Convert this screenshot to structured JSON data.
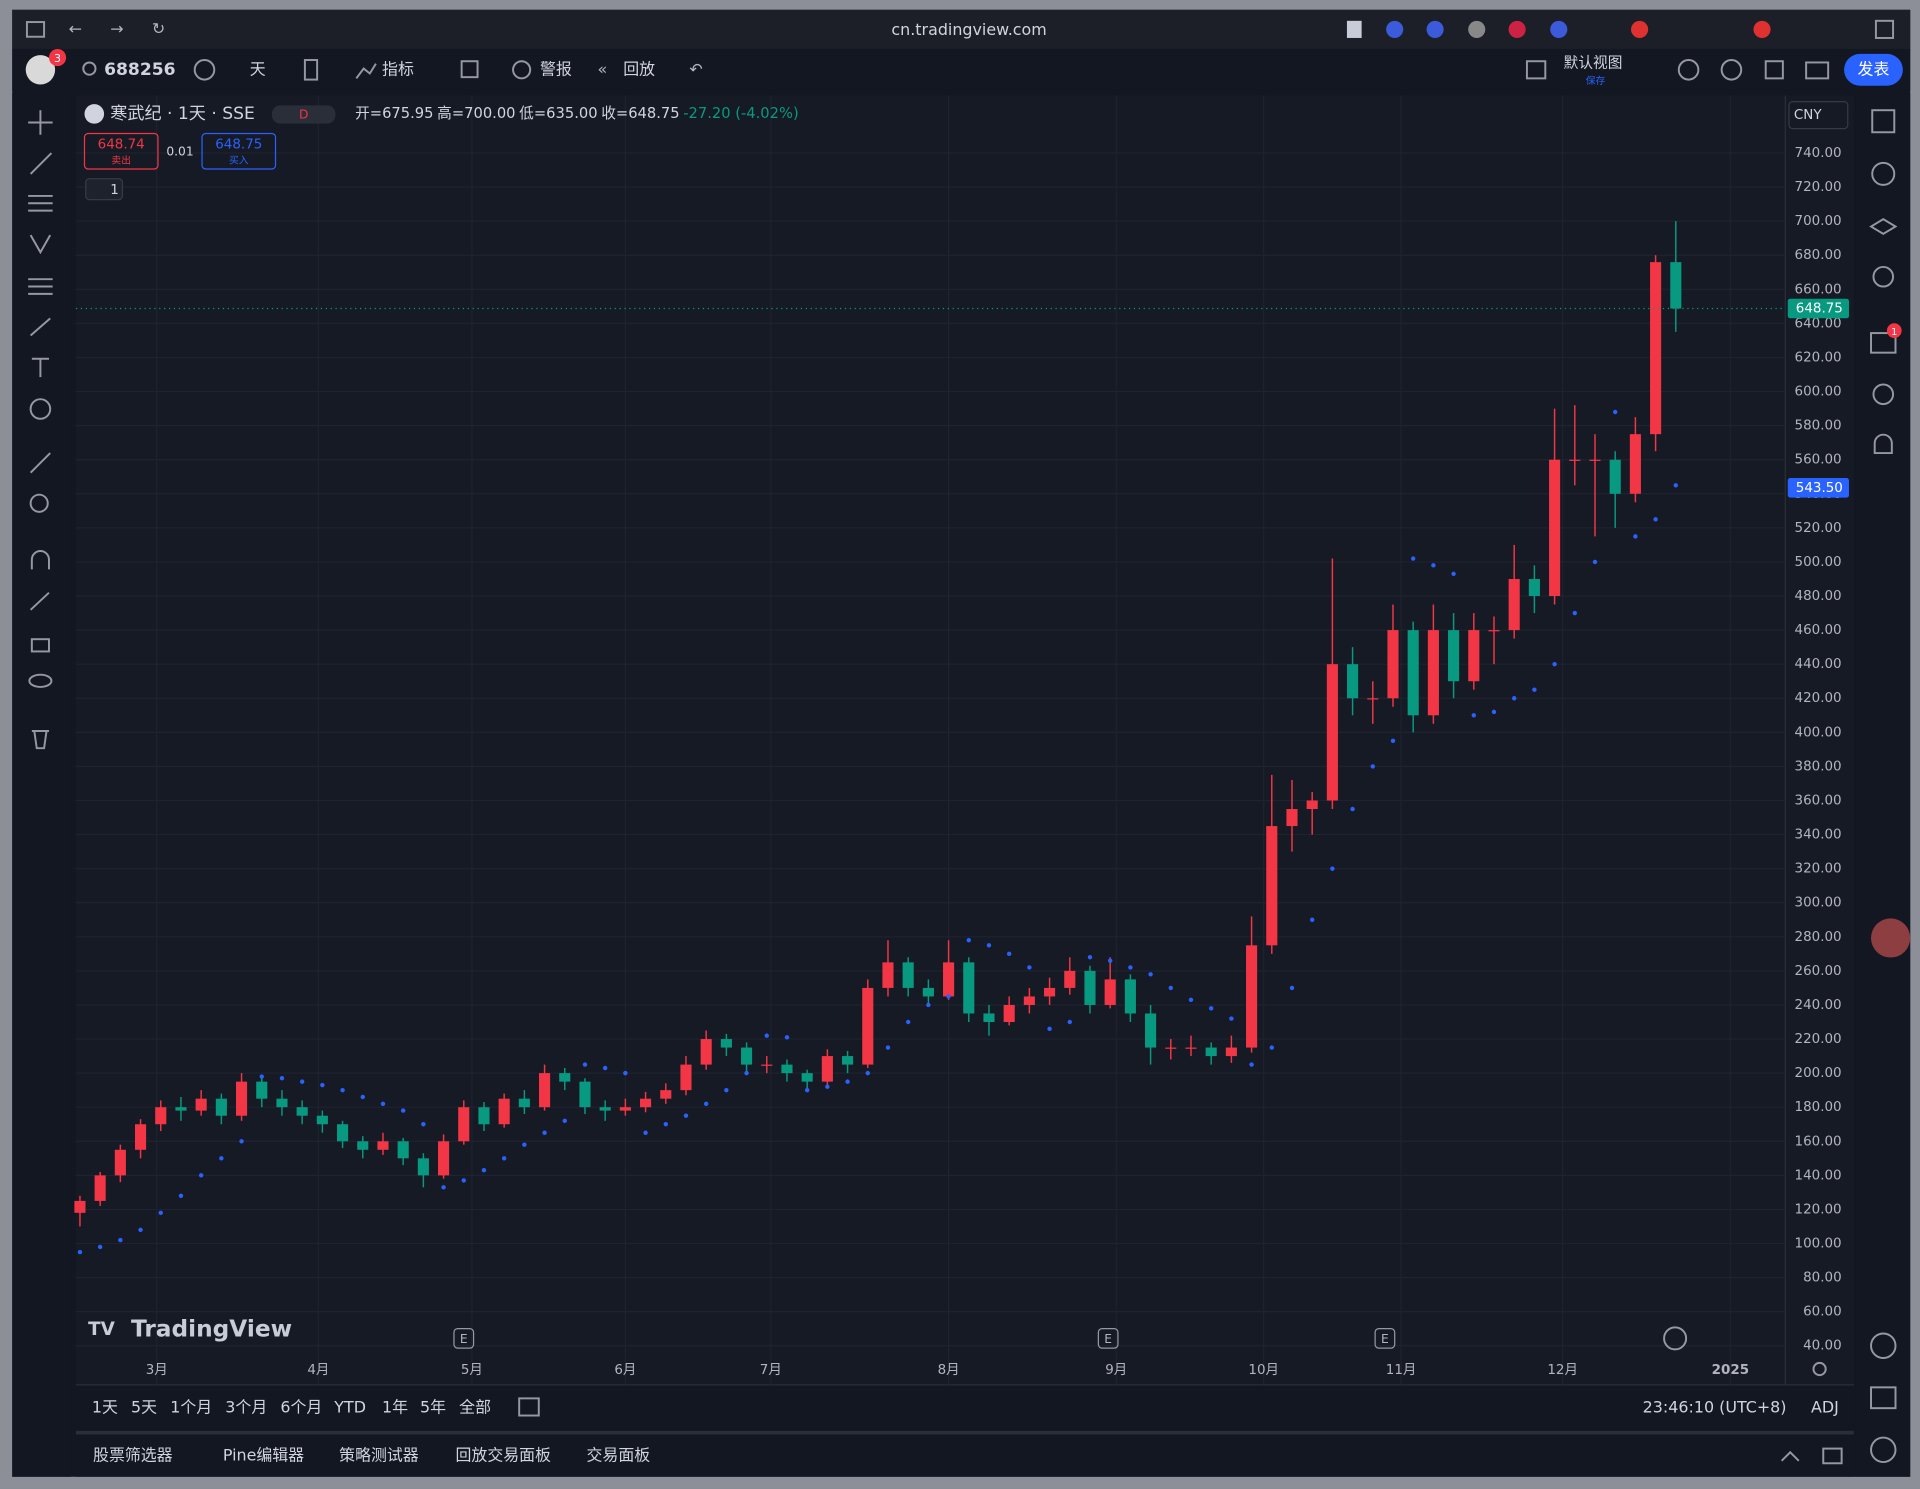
{
  "browser": {
    "url": "cn.tradingview.com"
  },
  "toolbar": {
    "badge": "3",
    "symbol": "688256",
    "interval": "天",
    "indicators": "指标",
    "alerts": "警报",
    "replay": "回放",
    "layout": "默认视图",
    "layout_sub": "保存",
    "publish": "发表"
  },
  "legend": {
    "title": "寒武纪 · 1天 · SSE",
    "session": "D",
    "open": "开=675.95",
    "high": "高=700.00",
    "low": "低=635.00",
    "close": "收=648.75",
    "change": "-27.20 (-4.02%)",
    "sell_price": "648.74",
    "sell": "卖出",
    "spread": "0.01",
    "buy_price": "648.75",
    "buy": "买入",
    "indicators": "1"
  },
  "chart_data": {
    "type": "candlestick",
    "candles": [
      [
        118,
        128,
        110,
        125
      ],
      [
        125,
        142,
        122,
        140
      ],
      [
        140,
        158,
        136,
        155
      ],
      [
        155,
        173,
        150,
        170
      ],
      [
        170,
        184,
        166,
        180
      ],
      [
        180,
        186,
        172,
        178
      ],
      [
        178,
        190,
        175,
        185
      ],
      [
        185,
        188,
        170,
        175
      ],
      [
        175,
        200,
        172,
        195
      ],
      [
        195,
        197,
        180,
        185
      ],
      [
        185,
        190,
        175,
        180
      ],
      [
        180,
        184,
        170,
        175
      ],
      [
        175,
        178,
        165,
        170
      ],
      [
        170,
        172,
        156,
        160
      ],
      [
        160,
        163,
        150,
        155
      ],
      [
        155,
        165,
        152,
        160
      ],
      [
        160,
        162,
        146,
        150
      ],
      [
        150,
        153,
        133,
        140
      ],
      [
        140,
        164,
        138,
        160
      ],
      [
        160,
        184,
        158,
        180
      ],
      [
        180,
        183,
        166,
        170
      ],
      [
        170,
        188,
        168,
        185
      ],
      [
        185,
        190,
        176,
        180
      ],
      [
        180,
        205,
        178,
        200
      ],
      [
        200,
        203,
        190,
        195
      ],
      [
        195,
        197,
        176,
        180
      ],
      [
        180,
        184,
        172,
        178
      ],
      [
        178,
        185,
        175,
        180
      ],
      [
        180,
        189,
        177,
        185
      ],
      [
        185,
        194,
        182,
        190
      ],
      [
        190,
        210,
        187,
        205
      ],
      [
        205,
        225,
        202,
        220
      ],
      [
        220,
        223,
        210,
        215
      ],
      [
        215,
        218,
        200,
        205
      ],
      [
        205,
        210,
        200,
        205
      ],
      [
        205,
        208,
        195,
        200
      ],
      [
        200,
        202,
        190,
        195
      ],
      [
        195,
        214,
        192,
        210
      ],
      [
        210,
        213,
        200,
        205
      ],
      [
        205,
        255,
        203,
        250
      ],
      [
        250,
        278,
        245,
        265
      ],
      [
        265,
        268,
        245,
        250
      ],
      [
        250,
        255,
        240,
        245
      ],
      [
        245,
        278,
        243,
        265
      ],
      [
        265,
        268,
        230,
        235
      ],
      [
        235,
        240,
        222,
        230
      ],
      [
        230,
        245,
        228,
        240
      ],
      [
        240,
        250,
        235,
        245
      ],
      [
        245,
        256,
        240,
        250
      ],
      [
        250,
        268,
        246,
        260
      ],
      [
        260,
        263,
        235,
        240
      ],
      [
        240,
        268,
        238,
        255
      ],
      [
        255,
        258,
        230,
        235
      ],
      [
        235,
        240,
        205,
        215
      ],
      [
        215,
        220,
        208,
        215
      ],
      [
        215,
        222,
        210,
        215
      ],
      [
        215,
        218,
        205,
        210
      ],
      [
        210,
        222,
        206,
        215
      ],
      [
        215,
        292,
        212,
        275
      ],
      [
        275,
        375,
        270,
        345
      ],
      [
        345,
        372,
        330,
        355
      ],
      [
        355,
        365,
        340,
        360
      ],
      [
        360,
        502,
        355,
        440
      ],
      [
        440,
        450,
        410,
        420
      ],
      [
        420,
        430,
        405,
        420
      ],
      [
        420,
        475,
        415,
        460
      ],
      [
        460,
        465,
        400,
        410
      ],
      [
        410,
        475,
        405,
        460
      ],
      [
        460,
        470,
        420,
        430
      ],
      [
        430,
        470,
        425,
        460
      ],
      [
        460,
        468,
        440,
        460
      ],
      [
        460,
        510,
        455,
        490
      ],
      [
        490,
        498,
        470,
        480
      ],
      [
        480,
        590,
        475,
        560
      ],
      [
        560,
        592,
        545,
        560
      ],
      [
        560,
        575,
        515,
        560
      ],
      [
        560,
        565,
        520,
        540
      ],
      [
        540,
        585,
        535,
        575
      ],
      [
        575,
        680,
        565,
        675.95
      ],
      [
        675.95,
        700,
        635,
        648.75
      ]
    ],
    "sar": [
      95,
      98,
      102,
      108,
      118,
      128,
      140,
      150,
      160,
      198,
      197,
      195,
      193,
      190,
      186,
      182,
      178,
      170,
      133,
      137,
      143,
      150,
      158,
      165,
      172,
      205,
      203,
      200,
      165,
      170,
      175,
      182,
      190,
      200,
      222,
      221,
      190,
      192,
      195,
      200,
      215,
      230,
      240,
      245,
      278,
      275,
      270,
      262,
      226,
      230,
      268,
      266,
      262,
      258,
      250,
      243,
      238,
      232,
      205,
      215,
      250,
      290,
      320,
      355,
      380,
      395,
      502,
      498,
      493,
      410,
      412,
      420,
      425,
      440,
      470,
      500,
      588,
      515,
      525,
      545
    ],
    "up_color": "#f23645",
    "down_color": "#089981",
    "sar_color": "#2962ff",
    "xlim": [
      -0.2,
      84.3
    ],
    "xticks": [
      {
        "value": 3.8,
        "label": "3月"
      },
      {
        "value": 11.8,
        "label": "4月"
      },
      {
        "value": 19.4,
        "label": "5月"
      },
      {
        "value": 27,
        "label": "6月"
      },
      {
        "value": 34.2,
        "label": "7月"
      },
      {
        "value": 43,
        "label": "8月"
      },
      {
        "value": 51.3,
        "label": "9月"
      },
      {
        "value": 58.6,
        "label": "10月"
      },
      {
        "value": 65.4,
        "label": "11月"
      },
      {
        "value": 73.4,
        "label": "12月"
      },
      {
        "value": 81.7,
        "label": "2025"
      }
    ],
    "ylim": [
      35.7,
      772.3
    ],
    "yticks": [
      {
        "value": 40,
        "label": "40.00"
      },
      {
        "value": 60,
        "label": "60.00"
      },
      {
        "value": 80,
        "label": "80.00"
      },
      {
        "value": 100,
        "label": "100.00"
      },
      {
        "value": 120,
        "label": "120.00"
      },
      {
        "value": 140,
        "label": "140.00"
      },
      {
        "value": 160,
        "label": "160.00"
      },
      {
        "value": 180,
        "label": "180.00"
      },
      {
        "value": 200,
        "label": "200.00"
      },
      {
        "value": 220,
        "label": "220.00"
      },
      {
        "value": 240,
        "label": "240.00"
      },
      {
        "value": 260,
        "label": "260.00"
      },
      {
        "value": 280,
        "label": "280.00"
      },
      {
        "value": 300,
        "label": "300.00"
      },
      {
        "value": 320,
        "label": "320.00"
      },
      {
        "value": 340,
        "label": "340.00"
      },
      {
        "value": 360,
        "label": "360.00"
      },
      {
        "value": 380,
        "label": "380.00"
      },
      {
        "value": 400,
        "label": "400.00"
      },
      {
        "value": 420,
        "label": "420.00"
      },
      {
        "value": 440,
        "label": "440.00"
      },
      {
        "value": 460,
        "label": "460.00"
      },
      {
        "value": 480,
        "label": "480.00"
      },
      {
        "value": 500,
        "label": "500.00"
      },
      {
        "value": 520,
        "label": "520.00"
      },
      {
        "value": 540,
        "label": "540.00"
      },
      {
        "value": 560,
        "label": "560.00"
      },
      {
        "value": 580,
        "label": "580.00"
      },
      {
        "value": 600,
        "label": "600.00"
      },
      {
        "value": 620,
        "label": "620.00"
      },
      {
        "value": 640,
        "label": "640.00"
      },
      {
        "value": 660,
        "label": "660.00"
      },
      {
        "value": 680,
        "label": "680.00"
      },
      {
        "value": 700,
        "label": "700.00"
      },
      {
        "value": 720,
        "label": "720.00"
      },
      {
        "value": 740,
        "label": "740.00"
      }
    ],
    "grid": true,
    "last_price": {
      "value": 648.75,
      "label": "648.75"
    },
    "sar_next": {
      "value": 543.5,
      "label": "543.50"
    },
    "events": [
      {
        "value": 19,
        "label": "E"
      },
      {
        "value": 50.9,
        "label": "E"
      },
      {
        "value": 64.6,
        "label": "E"
      }
    ],
    "currency": "CNY",
    "watermark": "TradingView"
  },
  "range_bar": {
    "ranges": [
      "1天",
      "5天",
      "1个月",
      "3个月",
      "6个月",
      "YTD",
      "1年",
      "5年",
      "全部"
    ],
    "time": "23:46:10 (UTC+8)",
    "adj": "ADJ"
  },
  "bottom_panel": {
    "tabs": [
      "股票筛选器",
      "Pine编辑器",
      "策略测试器",
      "回放交易面板",
      "交易面板"
    ]
  },
  "sidebar": {
    "badge": "1"
  }
}
